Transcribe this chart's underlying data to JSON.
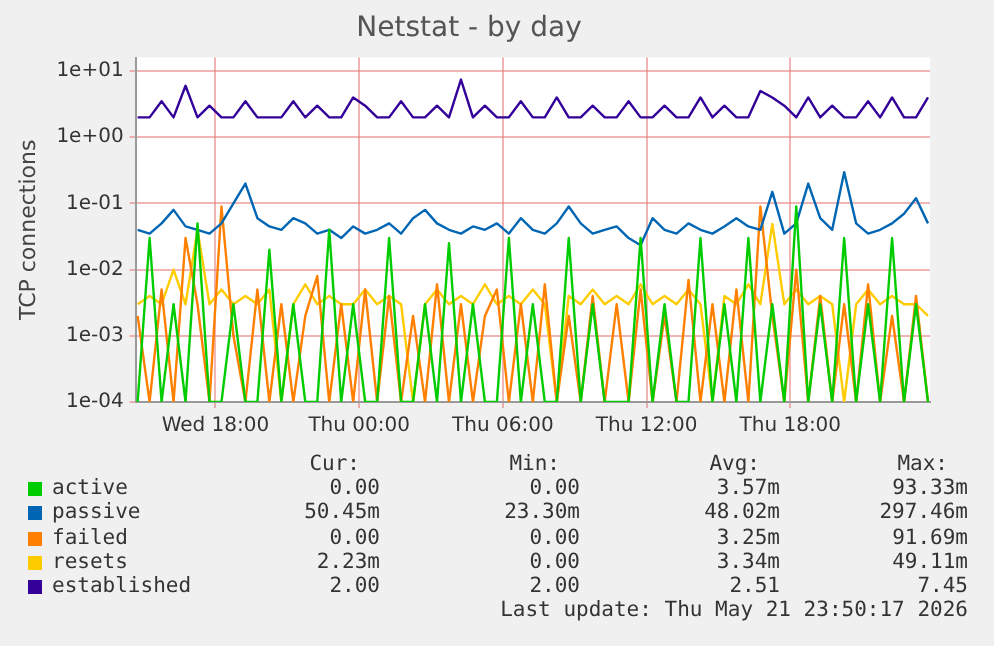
{
  "chart_data": {
    "type": "line",
    "title": "Netstat - by day",
    "ylabel": "TCP connections",
    "log": "y",
    "grid": true,
    "legend": "bottom",
    "marker": "none",
    "line_style": "solid",
    "x": [
      "2026-05-20T14:45",
      "2026-05-20T15:15",
      "2026-05-20T15:45",
      "2026-05-20T16:15",
      "2026-05-20T16:45",
      "2026-05-20T17:15",
      "2026-05-20T17:45",
      "2026-05-20T18:15",
      "2026-05-20T18:45",
      "2026-05-20T19:15",
      "2026-05-20T19:45",
      "2026-05-20T20:15",
      "2026-05-20T20:45",
      "2026-05-20T21:15",
      "2026-05-20T21:45",
      "2026-05-20T22:15",
      "2026-05-20T22:45",
      "2026-05-20T23:15",
      "2026-05-20T23:45",
      "2026-05-21T00:15",
      "2026-05-21T00:45",
      "2026-05-21T01:15",
      "2026-05-21T01:45",
      "2026-05-21T02:15",
      "2026-05-21T02:45",
      "2026-05-21T03:15",
      "2026-05-21T03:45",
      "2026-05-21T04:15",
      "2026-05-21T04:45",
      "2026-05-21T05:15",
      "2026-05-21T05:45",
      "2026-05-21T06:15",
      "2026-05-21T06:45",
      "2026-05-21T07:15",
      "2026-05-21T07:45",
      "2026-05-21T08:15",
      "2026-05-21T08:45",
      "2026-05-21T09:15",
      "2026-05-21T09:45",
      "2026-05-21T10:15",
      "2026-05-21T10:45",
      "2026-05-21T11:15",
      "2026-05-21T11:45",
      "2026-05-21T12:15",
      "2026-05-21T12:45",
      "2026-05-21T13:15",
      "2026-05-21T13:45",
      "2026-05-21T14:15",
      "2026-05-21T14:45",
      "2026-05-21T15:15",
      "2026-05-21T15:45",
      "2026-05-21T16:15",
      "2026-05-21T16:45",
      "2026-05-21T17:15",
      "2026-05-21T17:45",
      "2026-05-21T18:15",
      "2026-05-21T18:45",
      "2026-05-21T19:15",
      "2026-05-21T19:45",
      "2026-05-21T20:15",
      "2026-05-21T20:45",
      "2026-05-21T21:15",
      "2026-05-21T21:45",
      "2026-05-21T22:15",
      "2026-05-21T22:45",
      "2026-05-21T23:15",
      "2026-05-21T23:45"
    ],
    "xlim": [
      "2026-05-20T14:40",
      "2026-05-21T23:50"
    ],
    "xticks": [
      {
        "value": "2026-05-20T18:00",
        "label": "Wed 18:00"
      },
      {
        "value": "2026-05-21T00:00",
        "label": "Thu 00:00"
      },
      {
        "value": "2026-05-21T06:00",
        "label": "Thu 06:00"
      },
      {
        "value": "2026-05-21T12:00",
        "label": "Thu 12:00"
      },
      {
        "value": "2026-05-21T18:00",
        "label": "Thu 18:00"
      }
    ],
    "ylim": [
      0.0001,
      16
    ],
    "yticks": [
      {
        "value": 0.0001,
        "label": "1e-04"
      },
      {
        "value": 0.001,
        "label": "1e-03"
      },
      {
        "value": 0.01,
        "label": "1e-02"
      },
      {
        "value": 0.1,
        "label": "1e-01"
      },
      {
        "value": 1,
        "label": "1e+00"
      },
      {
        "value": 10,
        "label": "1e+01"
      }
    ],
    "series": [
      {
        "name": "active",
        "color": "#00cc00",
        "values": [
          0.0001,
          0.03,
          0.0001,
          0.003,
          0.0001,
          0.05,
          0.0001,
          0.0001,
          0.003,
          0.0001,
          0.0001,
          0.02,
          0.0001,
          0.003,
          0.0001,
          0.0001,
          0.04,
          0.0001,
          0.003,
          0.0001,
          0.0001,
          0.03,
          0.0001,
          0.0001,
          0.003,
          0.0001,
          0.025,
          0.0001,
          0.003,
          0.0001,
          0.0001,
          0.03,
          0.0001,
          0.003,
          0.0001,
          0.0001,
          0.03,
          0.0001,
          0.003,
          0.0001,
          0.0001,
          0.0001,
          0.03,
          0.0001,
          0.003,
          0.0001,
          0.0001,
          0.03,
          0.0001,
          0.003,
          0.0001,
          0.03,
          0.0001,
          0.003,
          0.0001,
          0.09,
          0.0001,
          0.003,
          0.0001,
          0.03,
          0.0001,
          0.003,
          0.0001,
          0.03,
          0.0001,
          0.003,
          0.0001
        ]
      },
      {
        "name": "passive",
        "color": "#0066b3",
        "values": [
          0.04,
          0.035,
          0.05,
          0.08,
          0.045,
          0.04,
          0.035,
          0.05,
          0.1,
          0.2,
          0.06,
          0.045,
          0.04,
          0.06,
          0.05,
          0.035,
          0.04,
          0.03,
          0.045,
          0.035,
          0.04,
          0.05,
          0.035,
          0.06,
          0.08,
          0.05,
          0.04,
          0.035,
          0.045,
          0.04,
          0.05,
          0.035,
          0.06,
          0.04,
          0.035,
          0.05,
          0.09,
          0.05,
          0.035,
          0.04,
          0.045,
          0.03,
          0.0233,
          0.06,
          0.04,
          0.035,
          0.05,
          0.04,
          0.035,
          0.045,
          0.06,
          0.045,
          0.04,
          0.15,
          0.035,
          0.05,
          0.2,
          0.06,
          0.04,
          0.297,
          0.05,
          0.035,
          0.04,
          0.05,
          0.07,
          0.12,
          0.05
        ]
      },
      {
        "name": "failed",
        "color": "#ff8000",
        "values": [
          0.002,
          0.0001,
          0.005,
          0.0001,
          0.03,
          0.003,
          0.0001,
          0.09,
          0.001,
          0.0001,
          0.005,
          0.0001,
          0.003,
          0.0001,
          0.002,
          0.008,
          0.0001,
          0.003,
          0.0001,
          0.005,
          0.0001,
          0.004,
          0.0001,
          0.002,
          0.0001,
          0.006,
          0.0001,
          0.003,
          0.0001,
          0.002,
          0.005,
          0.0001,
          0.003,
          0.0001,
          0.006,
          0.0001,
          0.002,
          0.0001,
          0.004,
          0.0001,
          0.003,
          0.0001,
          0.005,
          0.0001,
          0.002,
          0.0001,
          0.007,
          0.0001,
          0.003,
          0.0001,
          0.005,
          0.0001,
          0.09,
          0.002,
          0.0001,
          0.01,
          0.0001,
          0.004,
          0.0001,
          0.003,
          0.0001,
          0.006,
          0.0001,
          0.002,
          0.0001,
          0.004,
          0.0001
        ]
      },
      {
        "name": "resets",
        "color": "#ffcc00",
        "values": [
          0.003,
          0.004,
          0.003,
          0.01,
          0.003,
          0.04,
          0.003,
          0.005,
          0.003,
          0.004,
          0.003,
          0.005,
          0.0001,
          0.003,
          0.006,
          0.003,
          0.004,
          0.003,
          0.003,
          0.005,
          0.003,
          0.004,
          0.003,
          0.0001,
          0.003,
          0.005,
          0.003,
          0.004,
          0.003,
          0.006,
          0.003,
          0.004,
          0.003,
          0.005,
          0.003,
          0.0001,
          0.004,
          0.003,
          0.005,
          0.003,
          0.004,
          0.003,
          0.006,
          0.003,
          0.004,
          0.003,
          0.005,
          0.003,
          0.0001,
          0.004,
          0.003,
          0.006,
          0.003,
          0.049,
          0.003,
          0.005,
          0.003,
          0.004,
          0.003,
          0.0001,
          0.003,
          0.005,
          0.003,
          0.004,
          0.003,
          0.003,
          0.002
        ]
      },
      {
        "name": "established",
        "color": "#330099",
        "values": [
          2,
          2,
          3.5,
          2,
          6,
          2,
          3,
          2,
          2,
          3.5,
          2,
          2,
          2,
          3.5,
          2,
          3,
          2,
          2,
          4,
          3,
          2,
          2,
          3.5,
          2,
          2,
          3,
          2,
          7.45,
          2,
          3,
          2,
          2,
          3.5,
          2,
          2,
          4,
          2,
          2,
          3,
          2,
          2,
          3.5,
          2,
          2,
          3,
          2,
          2,
          4,
          2,
          3,
          2,
          2,
          5,
          4,
          3,
          2,
          4,
          2,
          3,
          2,
          2,
          3.5,
          2,
          4,
          2,
          2,
          4
        ]
      }
    ],
    "annotations": [
      "Cur:",
      "Min:",
      "Avg:",
      "Max:",
      "0.00",
      "0.00",
      "3.57m",
      "93.33m",
      "50.45m",
      "23.30m",
      "48.02m",
      "297.46m",
      "0.00",
      "0.00",
      "3.25m",
      "91.69m",
      "2.23m",
      "0.00",
      "3.34m",
      "49.11m",
      "2.00",
      "2.00",
      "2.51",
      "7.45",
      "Last update: Thu May 21 23:50:17 2026"
    ]
  }
}
